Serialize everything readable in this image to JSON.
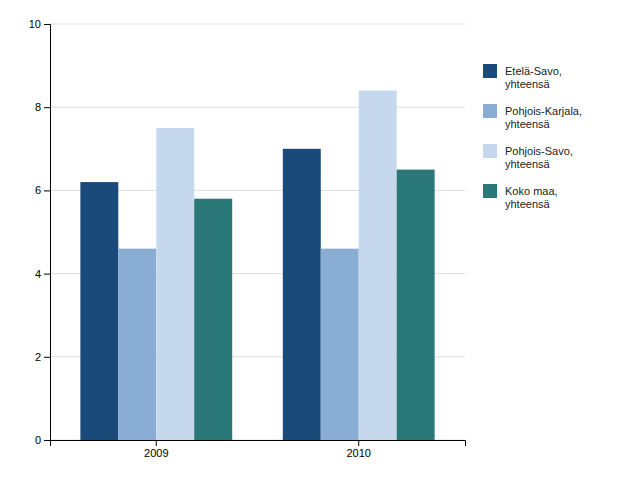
{
  "chart_data": {
    "type": "bar",
    "categories": [
      "2009",
      "2010"
    ],
    "series": [
      {
        "name": "Etelä-Savo,\nyhteensä",
        "color": "#1a4a7a",
        "values": [
          6.2,
          7.0
        ]
      },
      {
        "name": "Pohjois-Karjala,\nyhteensä",
        "color": "#8aadd4",
        "values": [
          4.6,
          4.6
        ]
      },
      {
        "name": "Pohjois-Savo,\nyhteensä",
        "color": "#c5d8ee",
        "values": [
          7.5,
          8.4
        ]
      },
      {
        "name": "Koko maa,\nyhteensä",
        "color": "#2a7878",
        "values": [
          5.8,
          6.5
        ]
      }
    ],
    "ylim": [
      0,
      10
    ],
    "yticks": [
      0,
      2,
      4,
      6,
      8,
      10
    ],
    "grid": true,
    "legend": "right"
  }
}
